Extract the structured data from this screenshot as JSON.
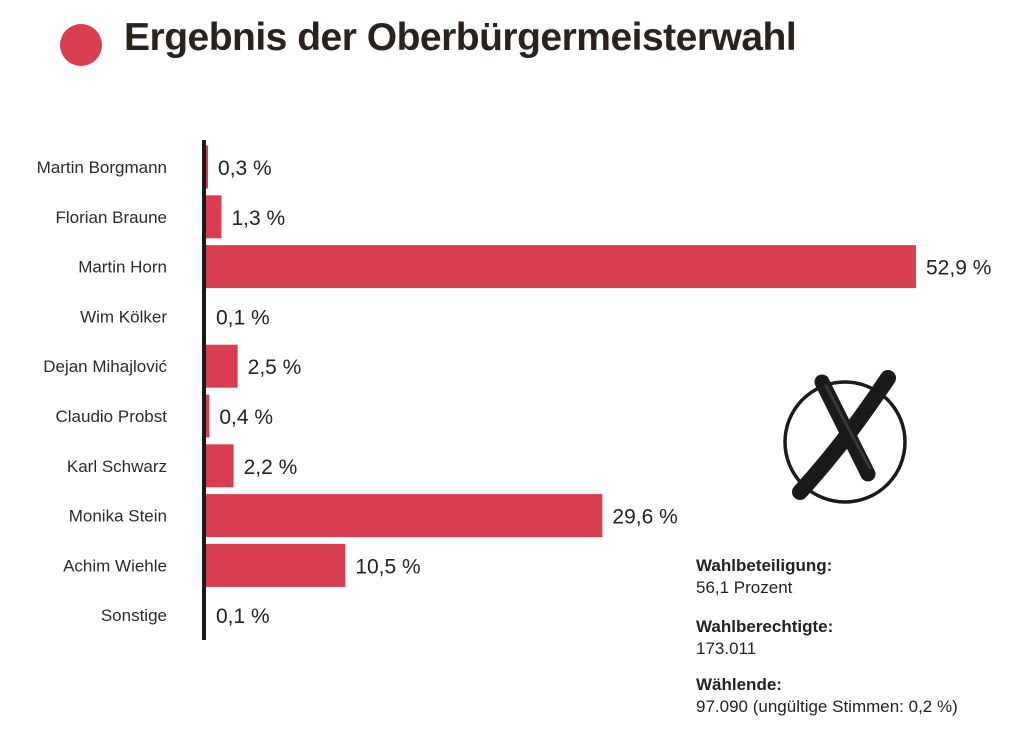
{
  "header": {
    "title": "Ergebnis der Oberbürgermeisterwahl",
    "accent_color": "#d93e50"
  },
  "chart_data": {
    "type": "bar",
    "orientation": "horizontal",
    "title": "Ergebnis der Oberbürgermeisterwahl",
    "categories": [
      "Martin Borgmann",
      "Florian Braune",
      "Martin Horn",
      "Wim Kölker",
      "Dejan Mihajlović",
      "Claudio Probst",
      "Karl Schwarz",
      "Monika Stein",
      "Achim Wiehle",
      "Sonstige"
    ],
    "values": [
      0.3,
      1.3,
      52.9,
      0.1,
      2.5,
      0.4,
      2.2,
      29.6,
      10.5,
      0.1
    ],
    "value_labels": [
      "0,3 %",
      "1,3 %",
      "52,9 %",
      "0,1 %",
      "2,5 %",
      "0,4 %",
      "2,2 %",
      "29,6 %",
      "10,5 %",
      "0,1 %"
    ],
    "unit": "%",
    "xlim": [
      0,
      52.9
    ],
    "bar_color": "#d93e50",
    "axis_color": "#1a1a1a",
    "grid": false,
    "xlabel": "",
    "ylabel": ""
  },
  "stats": {
    "turnout_label": "Wahlbeteiligung:",
    "turnout_value": "56,1 Prozent",
    "eligible_label": "Wahlberechtigte:",
    "eligible_value": "173.011",
    "voters_label": "Wählende:",
    "voters_value": "97.090 (ungültige Stimmen: 0,2 %)"
  },
  "icons": {
    "title_marker": "red-dot-icon",
    "ballot": "ballot-cross-icon"
  }
}
